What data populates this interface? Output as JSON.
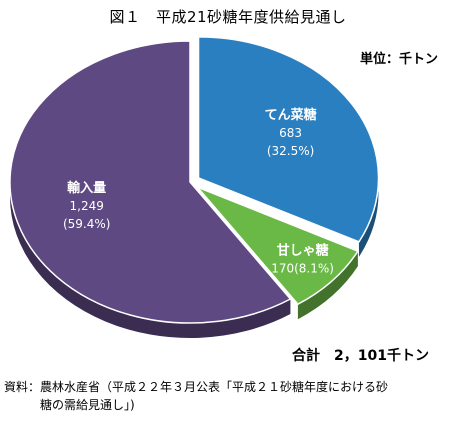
{
  "page": {
    "title": "図１　平成21砂糖年度供給見通し",
    "unit": "単位：千トン",
    "total": "合計　2，101千トン",
    "source_line1": "資料：農林水産省（平成２２年３月公表「平成２１砂糖年度における砂",
    "source_line2": "糖の需給見通し」)"
  },
  "chart_data": {
    "type": "pie",
    "title": "図１　平成21砂糖年度供給見通し",
    "unit": "千トン",
    "total": 2101,
    "slices": [
      {
        "name": "てん菜糖",
        "value": 683,
        "value_label": "683",
        "percent": 32.5,
        "percent_label": "(32.5%)",
        "color": "#2a7fc1",
        "exploded": true
      },
      {
        "name": "甘しゃ糖",
        "value": 170,
        "value_label": "170(8.1%)",
        "percent": 8.1,
        "percent_label": "",
        "color": "#6ab845",
        "exploded": true
      },
      {
        "name": "輸入量",
        "value": 1249,
        "value_label": "1,249",
        "percent": 59.4,
        "percent_label": "(59.4%)",
        "color": "#5e4982",
        "exploded": false
      }
    ]
  }
}
